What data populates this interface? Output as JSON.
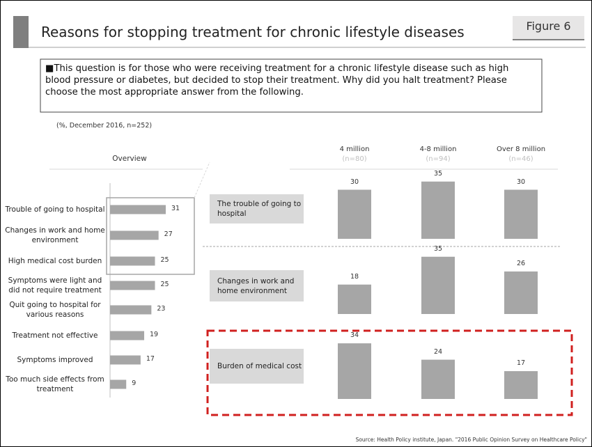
{
  "header": {
    "title": "Reasons for stopping treatment for chronic lifestyle diseases",
    "figure": "Figure 6"
  },
  "question": "■This question is for those who were receiving treatment for a chronic lifestyle disease such as high blood pressure or diabetes, but decided to stop their treatment. Why did you halt treatment? Please choose the most appropriate answer from the following.",
  "note": "(%, December 2016, n=252)",
  "source": "Source: Health Policy institute, Japan. \"2016 Public Opinion Survey on Healthcare Policy\"",
  "income_groups": {
    "labels": [
      "4 million",
      "4-8 million",
      "Over 8 million"
    ],
    "n": [
      "(n=80)",
      "(n=94)",
      "(n=46)"
    ]
  },
  "chart_data": [
    {
      "type": "hbar",
      "title": "Overview",
      "color": "#a6a6a6",
      "categories": [
        "Trouble of going to hospital",
        "Changes in work and home environment",
        "High medical cost burden",
        "Symptoms were light and did not require treatment",
        "Quit going to hospital for various reasons",
        "Treatment not effective",
        "Symptoms improved",
        "Too much side effects from treatment"
      ],
      "values": [
        31,
        27,
        25,
        25,
        23,
        19,
        17,
        9
      ]
    },
    {
      "type": "bar",
      "title": "The trouble of going to hospital",
      "color": "#a6a6a6",
      "values": [
        30,
        35,
        30
      ]
    },
    {
      "type": "bar",
      "title": "Changes in work and home environment",
      "color": "#a6a6a6",
      "values": [
        18,
        35,
        26
      ]
    },
    {
      "type": "bar",
      "title": "Burden of medical cost",
      "color": "#a6a6a6",
      "values": [
        34,
        24,
        17
      ]
    }
  ]
}
